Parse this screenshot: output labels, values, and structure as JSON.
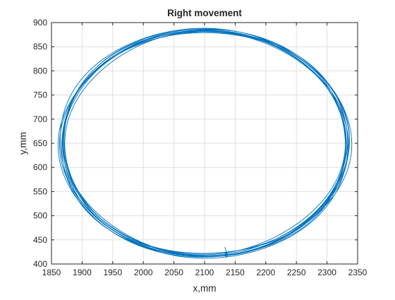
{
  "chart_data": {
    "type": "line",
    "title": "Right movement",
    "xlabel": "x,mm",
    "ylabel": "y,mm",
    "xlim": [
      1850,
      2350
    ],
    "ylim": [
      400,
      900
    ],
    "xticks": [
      1850,
      1900,
      1950,
      2000,
      2050,
      2100,
      2150,
      2200,
      2250,
      2300,
      2350
    ],
    "yticks": [
      400,
      450,
      500,
      550,
      600,
      650,
      700,
      750,
      800,
      850,
      900
    ],
    "grid": true,
    "line_color": "#0072BD",
    "trajectory": {
      "center": [
        2100,
        650
      ],
      "radius_x": 233,
      "radius_y": 233,
      "loops": 10,
      "start": [
        2133,
        435
      ]
    }
  }
}
